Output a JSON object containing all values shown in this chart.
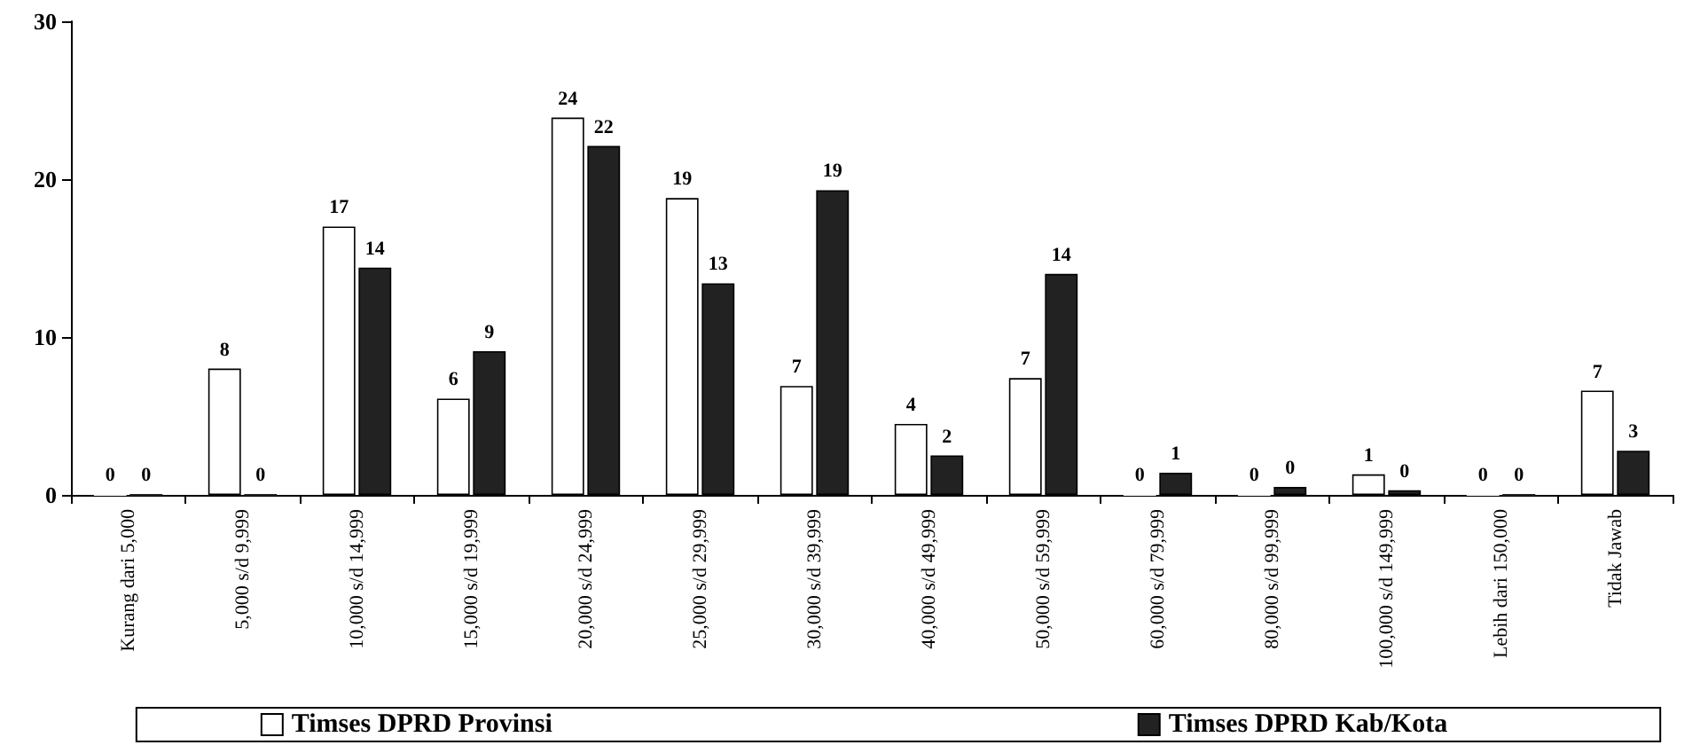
{
  "chart_data": {
    "type": "bar",
    "categories": [
      "Kurang dari 5,000",
      "5,000 s/d 9,999",
      "10,000 s/d 14,999",
      "15,000 s/d 19,999",
      "20,000 s/d 24,999",
      "25,000 s/d 29,999",
      "30,000 s/d 39,999",
      "40,000 s/d 49,999",
      "50,000 s/d 59,999",
      "60,000 s/d 79,999",
      "80,000 s/d 99,999",
      "100,000 s/d 149,999",
      "Lebih dari 150,000",
      "Tidak Jawab"
    ],
    "series": [
      {
        "name": "Timses DPRD Provinsi",
        "color": "#ffffff",
        "values": [
          0,
          8,
          17,
          6.1,
          23.9,
          18.8,
          6.9,
          4.5,
          7.4,
          0,
          0,
          1.3,
          0,
          6.6
        ],
        "value_labels": [
          "0",
          "8",
          "17",
          "6",
          "24",
          "19",
          "7",
          "4",
          "7",
          "0",
          "0",
          "1",
          "0",
          "7"
        ]
      },
      {
        "name": "Timses DPRD Kab/Kota",
        "color": "#222222",
        "values": [
          0,
          0,
          14.4,
          9.1,
          22.1,
          13.4,
          19.3,
          2.5,
          14,
          1.4,
          0.5,
          0.3,
          0,
          2.8
        ],
        "value_labels": [
          "0",
          "0",
          "14",
          "9",
          "22",
          "13",
          "19",
          "2",
          "14",
          "1",
          "0",
          "0",
          "0",
          "3"
        ]
      }
    ],
    "ylim": [
      0,
      30
    ],
    "yticks": [
      0,
      10,
      20,
      30
    ],
    "grid": false,
    "legend": "bottom"
  }
}
